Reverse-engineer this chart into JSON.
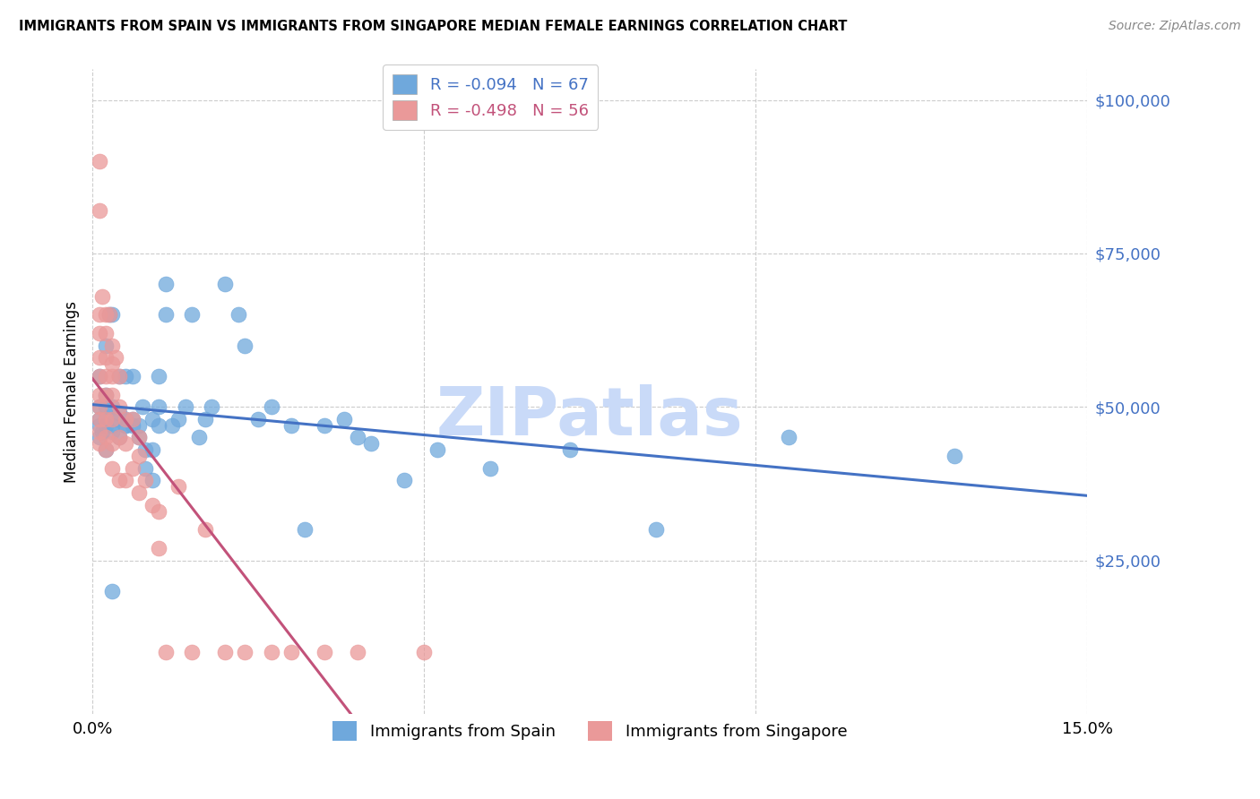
{
  "title": "IMMIGRANTS FROM SPAIN VS IMMIGRANTS FROM SINGAPORE MEDIAN FEMALE EARNINGS CORRELATION CHART",
  "source": "Source: ZipAtlas.com",
  "ylabel": "Median Female Earnings",
  "xlim": [
    0.0,
    0.15
  ],
  "ylim": [
    0,
    105000
  ],
  "ytick_values": [
    25000,
    50000,
    75000,
    100000
  ],
  "legend_entry1": "R = -0.094   N = 67",
  "legend_entry2": "R = -0.498   N = 56",
  "legend_label1": "Immigrants from Spain",
  "legend_label2": "Immigrants from Singapore",
  "color_spain": "#6fa8dc",
  "color_singapore": "#ea9999",
  "trendline_color_spain": "#4472c4",
  "trendline_color_singapore": "#c2527a",
  "watermark": "ZIPatlas",
  "watermark_color": "#c9daf8",
  "background_color": "#ffffff",
  "grid_color": "#cccccc",
  "spain_x": [
    0.001,
    0.001,
    0.001,
    0.001,
    0.001,
    0.0015,
    0.002,
    0.002,
    0.002,
    0.002,
    0.002,
    0.002,
    0.0025,
    0.003,
    0.003,
    0.003,
    0.003,
    0.003,
    0.0035,
    0.004,
    0.004,
    0.004,
    0.005,
    0.005,
    0.005,
    0.005,
    0.006,
    0.006,
    0.006,
    0.007,
    0.007,
    0.0075,
    0.008,
    0.008,
    0.009,
    0.009,
    0.009,
    0.01,
    0.01,
    0.01,
    0.011,
    0.011,
    0.012,
    0.013,
    0.014,
    0.015,
    0.016,
    0.017,
    0.018,
    0.02,
    0.022,
    0.023,
    0.025,
    0.027,
    0.03,
    0.032,
    0.035,
    0.038,
    0.04,
    0.042,
    0.047,
    0.052,
    0.06,
    0.072,
    0.085,
    0.105,
    0.13
  ],
  "spain_y": [
    48000,
    45000,
    50000,
    47000,
    55000,
    46000,
    48000,
    52000,
    43000,
    50000,
    47000,
    60000,
    65000,
    20000,
    46000,
    47000,
    50000,
    65000,
    48000,
    49000,
    55000,
    45000,
    47000,
    48000,
    55000,
    47000,
    47000,
    48000,
    55000,
    45000,
    47000,
    50000,
    43000,
    40000,
    38000,
    48000,
    43000,
    47000,
    50000,
    55000,
    65000,
    70000,
    47000,
    48000,
    50000,
    65000,
    45000,
    48000,
    50000,
    70000,
    65000,
    60000,
    48000,
    50000,
    47000,
    30000,
    47000,
    48000,
    45000,
    44000,
    38000,
    43000,
    40000,
    43000,
    30000,
    45000,
    42000
  ],
  "singapore_x": [
    0.001,
    0.001,
    0.001,
    0.001,
    0.001,
    0.001,
    0.001,
    0.001,
    0.001,
    0.001,
    0.001,
    0.0015,
    0.002,
    0.002,
    0.002,
    0.002,
    0.002,
    0.002,
    0.002,
    0.002,
    0.0025,
    0.003,
    0.003,
    0.003,
    0.003,
    0.003,
    0.003,
    0.003,
    0.0035,
    0.004,
    0.004,
    0.004,
    0.004,
    0.005,
    0.005,
    0.005,
    0.006,
    0.006,
    0.007,
    0.007,
    0.007,
    0.008,
    0.009,
    0.01,
    0.01,
    0.011,
    0.013,
    0.015,
    0.017,
    0.02,
    0.023,
    0.027,
    0.03,
    0.035,
    0.04,
    0.05
  ],
  "singapore_y": [
    90000,
    82000,
    65000,
    62000,
    58000,
    55000,
    52000,
    50000,
    48000,
    46000,
    44000,
    68000,
    65000,
    62000,
    58000,
    55000,
    52000,
    48000,
    45000,
    43000,
    65000,
    60000,
    57000,
    55000,
    52000,
    48000,
    44000,
    40000,
    58000,
    55000,
    50000,
    45000,
    38000,
    48000,
    44000,
    38000,
    48000,
    40000,
    45000,
    42000,
    36000,
    38000,
    34000,
    33000,
    27000,
    10000,
    37000,
    10000,
    30000,
    10000,
    10000,
    10000,
    10000,
    10000,
    10000,
    10000
  ]
}
